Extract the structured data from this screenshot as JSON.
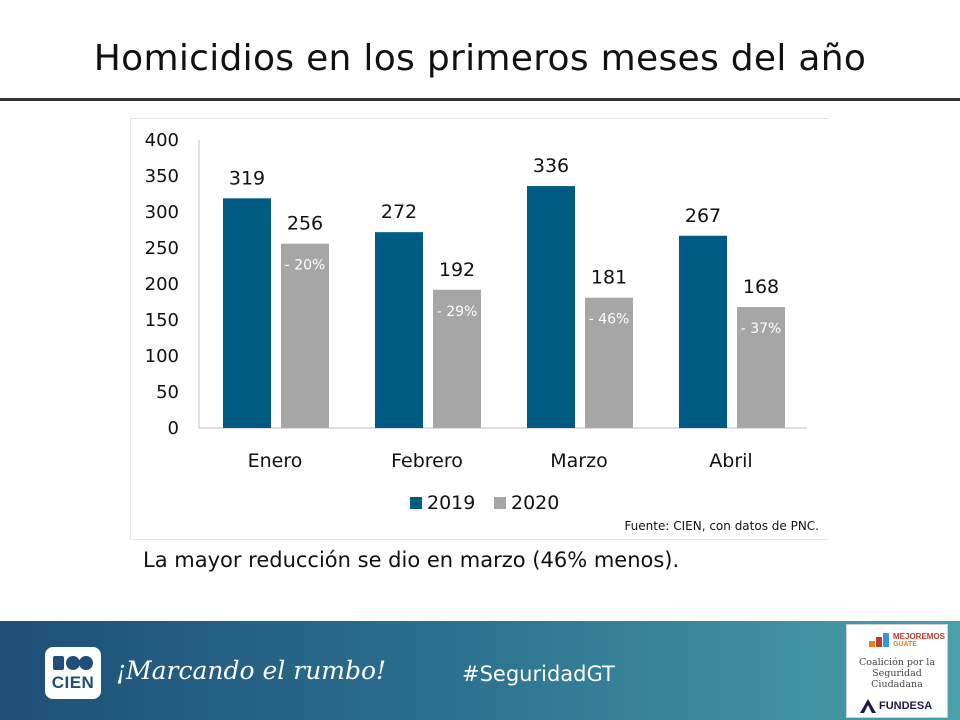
{
  "slide": {
    "title": "Homicidios en los primeros meses del año",
    "source": "Fuente: CIEN, con datos de PNC.",
    "summary": "La mayor reducción se dio en marzo (46% menos)."
  },
  "chart_data": {
    "type": "bar",
    "title": "",
    "categories": [
      "Enero",
      "Febrero",
      "Marzo",
      "Abril"
    ],
    "series": [
      {
        "name": "2019",
        "values": [
          319,
          272,
          336,
          267
        ],
        "color": "#005b82"
      },
      {
        "name": "2020",
        "values": [
          256,
          192,
          181,
          168
        ],
        "color": "#a6a6a6"
      }
    ],
    "change_labels": [
      "- 20%",
      "- 29%",
      "- 46%",
      "- 37%"
    ],
    "ylim": [
      0,
      400
    ],
    "yticks": [
      0,
      50,
      100,
      150,
      200,
      250,
      300,
      350,
      400
    ],
    "xlabel": "",
    "ylabel": "",
    "grid": false,
    "legend": "bottom-center"
  },
  "footer": {
    "logo_text": "CIEN",
    "slogan": "¡Marcando el rumbo!",
    "hashtag": "#SeguridadGT",
    "partner": {
      "brand_line1": "MEJOREMOS",
      "brand_line2": "GUATE",
      "coalition_line1": "Coalición por la",
      "coalition_line2": "Seguridad Ciudadana",
      "fundesa": "FUNDESA"
    }
  }
}
